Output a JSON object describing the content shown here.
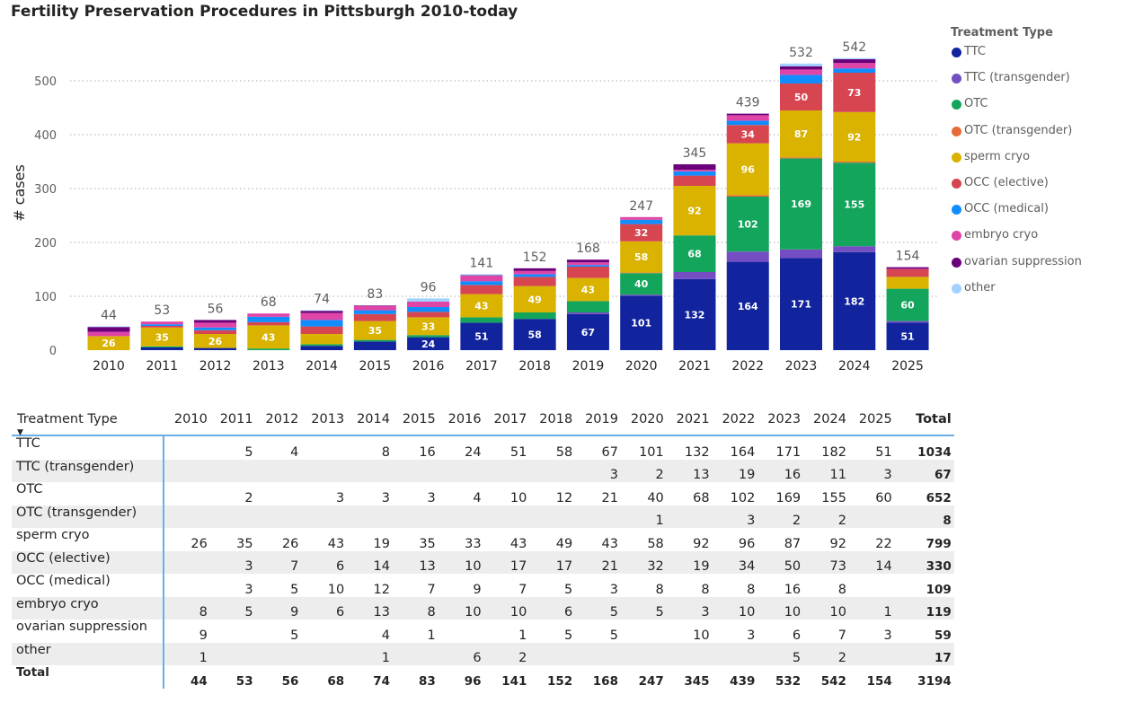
{
  "title": "Fertility Preservation Procedures in Pittsburgh 2010-today",
  "legend": {
    "title": "Treatment Type",
    "position": "right"
  },
  "chart_data": {
    "type": "bar",
    "stacked": true,
    "ylabel": "# cases",
    "xlabel": "",
    "ylim": [
      0,
      560
    ],
    "yticks": [
      "0",
      "100",
      "200",
      "300",
      "400",
      "500"
    ],
    "grid": true,
    "categories": [
      "2010",
      "2011",
      "2012",
      "2013",
      "2014",
      "2015",
      "2016",
      "2017",
      "2018",
      "2019",
      "2020",
      "2021",
      "2022",
      "2023",
      "2024",
      "2025"
    ],
    "totals": [
      44,
      53,
      56,
      68,
      74,
      83,
      96,
      141,
      152,
      168,
      247,
      345,
      439,
      532,
      542,
      154
    ],
    "series": [
      {
        "name": "TTC",
        "color": "#12239e",
        "values": [
          0,
          5,
          4,
          0,
          8,
          16,
          24,
          51,
          58,
          67,
          101,
          132,
          164,
          171,
          182,
          51
        ]
      },
      {
        "name": "TTC (transgender)",
        "color": "#744ec2",
        "values": [
          0,
          0,
          0,
          0,
          0,
          0,
          0,
          0,
          0,
          3,
          2,
          13,
          19,
          16,
          11,
          3
        ]
      },
      {
        "name": "OTC",
        "color": "#13a55c",
        "values": [
          0,
          2,
          0,
          3,
          3,
          3,
          4,
          10,
          12,
          21,
          40,
          68,
          102,
          169,
          155,
          60
        ]
      },
      {
        "name": "OTC (transgender)",
        "color": "#e66c37",
        "values": [
          0,
          0,
          0,
          0,
          0,
          0,
          0,
          0,
          0,
          0,
          1,
          0,
          3,
          2,
          2,
          0
        ]
      },
      {
        "name": "sperm cryo",
        "color": "#d9b300",
        "values": [
          26,
          35,
          26,
          43,
          19,
          35,
          33,
          43,
          49,
          43,
          58,
          92,
          96,
          87,
          92,
          22
        ]
      },
      {
        "name": "OCC (elective)",
        "color": "#d64550",
        "values": [
          0,
          3,
          7,
          6,
          14,
          13,
          10,
          17,
          17,
          21,
          32,
          19,
          34,
          50,
          73,
          14
        ]
      },
      {
        "name": "OCC (medical)",
        "color": "#118dff",
        "values": [
          0,
          3,
          5,
          10,
          12,
          7,
          9,
          7,
          5,
          3,
          8,
          8,
          8,
          16,
          8,
          0
        ]
      },
      {
        "name": "embryo cryo",
        "color": "#e044a7",
        "values": [
          8,
          5,
          9,
          6,
          13,
          8,
          10,
          10,
          6,
          5,
          5,
          3,
          10,
          10,
          10,
          1
        ]
      },
      {
        "name": "ovarian suppression",
        "color": "#6b007b",
        "values": [
          9,
          0,
          5,
          0,
          4,
          1,
          0,
          1,
          5,
          5,
          0,
          10,
          3,
          6,
          7,
          3
        ]
      },
      {
        "name": "other",
        "color": "#a0d1ff",
        "values": [
          1,
          0,
          0,
          0,
          1,
          0,
          6,
          2,
          0,
          0,
          0,
          0,
          0,
          5,
          2,
          0
        ]
      }
    ]
  },
  "table": {
    "header_first": "Treatment Type",
    "header_total": "Total",
    "sort_icon": "sort-descending-icon",
    "row_totals": [
      1034,
      67,
      652,
      8,
      799,
      330,
      109,
      119,
      59,
      17
    ],
    "total_label": "Total",
    "grand_total": 3194
  }
}
